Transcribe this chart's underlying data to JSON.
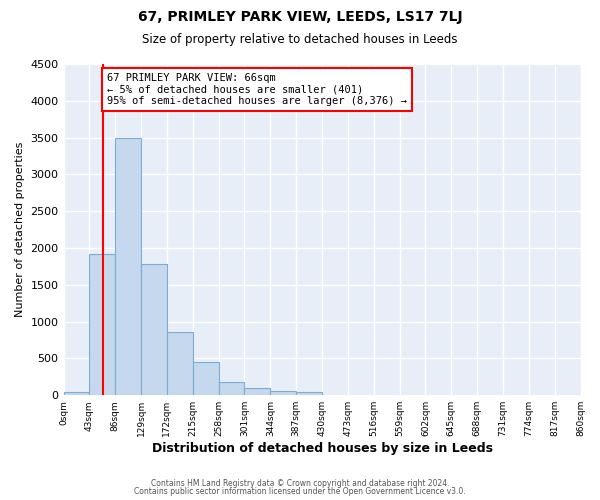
{
  "title": "67, PRIMLEY PARK VIEW, LEEDS, LS17 7LJ",
  "subtitle": "Size of property relative to detached houses in Leeds",
  "xlabel": "Distribution of detached houses by size in Leeds",
  "ylabel": "Number of detached properties",
  "bin_edges": [
    0,
    43,
    86,
    129,
    172,
    215,
    258,
    301,
    344,
    387,
    430,
    473,
    516,
    559,
    602,
    645,
    688,
    731,
    774,
    817,
    860
  ],
  "bar_heights": [
    50,
    1920,
    3500,
    1780,
    860,
    450,
    175,
    100,
    55,
    50,
    0,
    0,
    0,
    0,
    0,
    0,
    0,
    0,
    0,
    0
  ],
  "bar_color": "#c5d8ed",
  "bar_edge_color": "#7aadd4",
  "property_line_x": 66,
  "property_line_color": "red",
  "annotation_text": "67 PRIMLEY PARK VIEW: 66sqm\n← 5% of detached houses are smaller (401)\n95% of semi-detached houses are larger (8,376) →",
  "annotation_box_color": "white",
  "annotation_box_edge_color": "red",
  "ylim": [
    0,
    4500
  ],
  "tick_labels": [
    "0sqm",
    "43sqm",
    "86sqm",
    "129sqm",
    "172sqm",
    "215sqm",
    "258sqm",
    "301sqm",
    "344sqm",
    "387sqm",
    "430sqm",
    "473sqm",
    "516sqm",
    "559sqm",
    "602sqm",
    "645sqm",
    "688sqm",
    "731sqm",
    "774sqm",
    "817sqm",
    "860sqm"
  ],
  "background_color": "#ffffff",
  "plot_background_color": "#e8eef7",
  "grid_color": "#ffffff",
  "footer_line1": "Contains HM Land Registry data © Crown copyright and database right 2024.",
  "footer_line2": "Contains public sector information licensed under the Open Government Licence v3.0."
}
